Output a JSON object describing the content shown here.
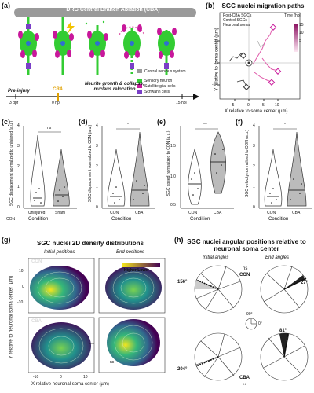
{
  "figure": {
    "a": {
      "letter": "(a)",
      "title": "DRG Central Branch Ablation (CBA)",
      "timeline": {
        "pre": "Pre-injury",
        "cba": "CBA",
        "dpf": "3 dpf",
        "hpi0": "0 hpi",
        "hpi15": "15 hpi",
        "caption": "Neurite growth & collapse; nucleus relocation"
      },
      "legend": [
        {
          "label": "Central nervous system",
          "color": "#9a9a9a"
        },
        {
          "label": "Sensory neuron",
          "color": "#33cc33"
        },
        {
          "label": "Satellite glial cells",
          "color": "#c8189b"
        },
        {
          "label": "Schwann cells",
          "color": "#7a3fc7"
        }
      ]
    },
    "b": {
      "letter": "(b)",
      "title": "SGC nuclei migration paths",
      "legend": [
        "Post-CBA SGCs",
        "Control SGCs",
        "Neuronal soma"
      ],
      "colorbar_title": "Time (hpi)",
      "colorbar_ticks": [
        "15",
        "10",
        "5"
      ],
      "xlabel": "X relative to soma center (µm)",
      "ylabel": "Y relative to soma center (µm)",
      "xticks": [
        "-5",
        "0",
        "5",
        "10"
      ],
      "yticks": [
        "5",
        "0",
        "-5"
      ]
    },
    "c": {
      "letter": "(c)",
      "ylabel": "SGC displacement normalized to uninjured (a.u.)",
      "xlabel": "Condition",
      "categories": [
        "Uninjured",
        "Sham"
      ],
      "sig": "ns",
      "yticks": [
        "4",
        "3",
        "2",
        "1",
        "0"
      ],
      "extra": "CON"
    },
    "d": {
      "letter": "(d)",
      "ylabel": "SGC displacement normalized to CON (a.u.)",
      "xlabel": "Condition",
      "categories": [
        "CON",
        "CBA"
      ],
      "sig": "*",
      "yticks": [
        "4",
        "3",
        "2",
        "1",
        "0"
      ]
    },
    "e": {
      "letter": "(e)",
      "ylabel": "SGC speed normalized to CON (a.u.)",
      "xlabel": "Condition",
      "categories": [
        "CON",
        "CBA"
      ],
      "sig": "***",
      "yticks": [
        "1.5",
        "1.0",
        "0.5"
      ]
    },
    "f": {
      "letter": "(f)",
      "ylabel": "SGC velocity normalized to CON (a.u.)",
      "xlabel": "Condition",
      "categories": [
        "CON",
        "CBA"
      ],
      "sig": "*",
      "yticks": [
        "4",
        "3",
        "2",
        "1",
        "0"
      ]
    },
    "g": {
      "letter": "(g)",
      "title": "SGC nuclei 2D density distributions",
      "col1": "Initial positions",
      "col2": "End positions",
      "row1": "CON",
      "row2": "CBA",
      "density_legend": "Higher    Lower",
      "ylabel": "Y relative to neuronal soma center (µm)",
      "xlabel": "X relative neuronal soma center (µm)",
      "xticks": [
        "-10",
        "0",
        "10"
      ],
      "yticks": [
        "10",
        "0",
        "-10"
      ],
      "sig_y": "***",
      "sig_x": "ns"
    },
    "h": {
      "letter": "(h)",
      "title": "SGC nuclei angular positions relative to neuronal soma center",
      "col1": "Initial angles",
      "col2": "End angles",
      "con_label": "CON",
      "cba_label": "CBA",
      "ns": "ns",
      "sig": "**",
      "angle_con_init": "156°",
      "angle_con_end": "27°",
      "angle_cba_init": "204°",
      "angle_cba_end": "81°",
      "compass_top": "90°",
      "compass_right": "0°"
    }
  }
}
